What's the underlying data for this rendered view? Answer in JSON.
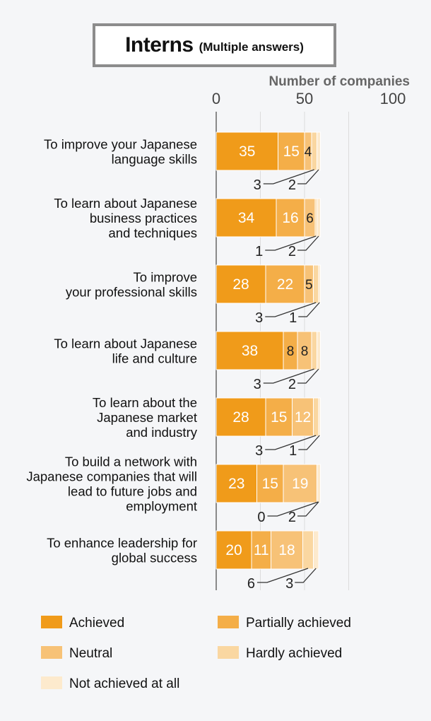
{
  "header": {
    "title": "Interns",
    "subtitle": "(Multiple answers)"
  },
  "chart_data": {
    "type": "bar",
    "orientation": "horizontal",
    "stacked": true,
    "xlabel": "Number of companies",
    "xlim": [
      0,
      100
    ],
    "xticks": [
      0,
      50,
      100
    ],
    "grid": true,
    "legend_position": "bottom",
    "categories": [
      [
        "To improve your Japanese",
        "language skills"
      ],
      [
        "To learn about Japanese",
        "business practices",
        "and techniques"
      ],
      [
        "To improve",
        "your professional skills"
      ],
      [
        "To learn about Japanese",
        "life and culture"
      ],
      [
        "To learn about the",
        "Japanese market",
        "and industry"
      ],
      [
        "To build a network with",
        "Japanese companies that will",
        "lead to future jobs and",
        "employment"
      ],
      [
        "To enhance leadership for",
        "global success"
      ]
    ],
    "series": [
      {
        "name": "Achieved",
        "color": "#f09b1a",
        "values": [
          35,
          34,
          28,
          38,
          28,
          23,
          20
        ]
      },
      {
        "name": "Partially achieved",
        "color": "#f4ae48",
        "values": [
          15,
          16,
          22,
          8,
          15,
          15,
          11
        ]
      },
      {
        "name": "Neutral",
        "color": "#f7c277",
        "values": [
          4,
          6,
          5,
          8,
          12,
          19,
          18
        ]
      },
      {
        "name": "Hardly achieved",
        "color": "#fad7a1",
        "values": [
          3,
          1,
          3,
          3,
          3,
          0,
          6
        ]
      },
      {
        "name": "Not achieved at all",
        "color": "#fdeacd",
        "values": [
          2,
          2,
          1,
          2,
          1,
          2,
          3
        ]
      }
    ]
  }
}
